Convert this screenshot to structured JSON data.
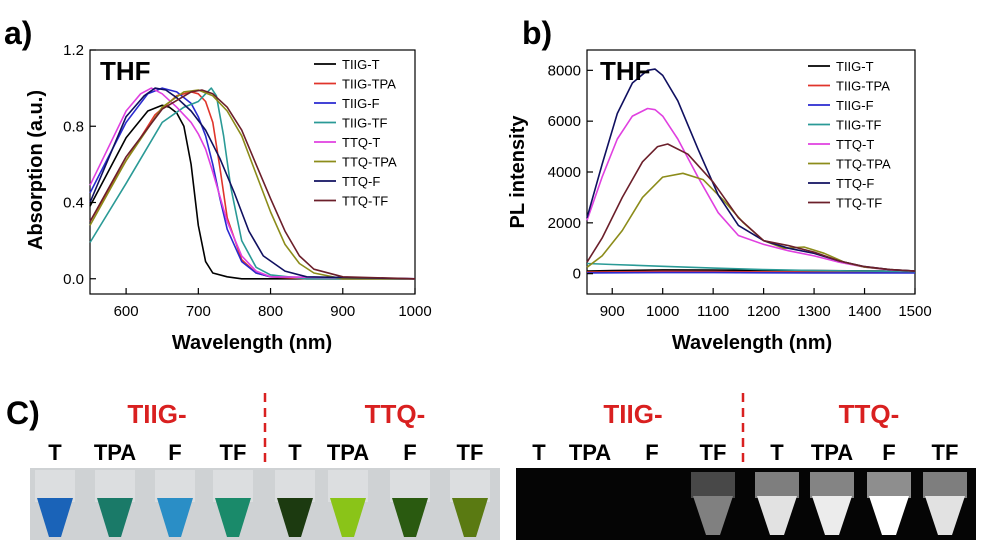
{
  "panels": {
    "a": {
      "label": "a)"
    },
    "b": {
      "label": "b)"
    },
    "c": {
      "label": "C)"
    }
  },
  "chart_data": [
    {
      "type": "line",
      "id": "a",
      "xlabel": "Wavelength (nm)",
      "ylabel": "Absorption (a.u.)",
      "annotation": "THF",
      "xlim": [
        550,
        1000
      ],
      "ylim": [
        -0.08,
        1.2
      ],
      "xticks": [
        600,
        700,
        800,
        900,
        1000
      ],
      "yticks": [
        0.0,
        0.4,
        0.8,
        1.2
      ],
      "ytick_labels": [
        "0.0",
        "0.4",
        "0.8",
        "1.2"
      ],
      "grid": false,
      "legend_position": "top-right",
      "series": [
        {
          "name": "TIIG-T",
          "color": "#000000",
          "x": [
            550,
            600,
            630,
            650,
            660,
            670,
            680,
            690,
            700,
            710,
            720,
            740,
            760,
            800,
            1000
          ],
          "y": [
            0.38,
            0.74,
            0.88,
            0.91,
            0.9,
            0.87,
            0.8,
            0.6,
            0.28,
            0.09,
            0.03,
            0.01,
            0.0,
            0.0,
            0.0
          ]
        },
        {
          "name": "TIIG-TPA",
          "color": "#e0352b",
          "x": [
            550,
            600,
            640,
            670,
            690,
            700,
            710,
            720,
            730,
            740,
            760,
            780,
            800,
            850,
            1000
          ],
          "y": [
            0.3,
            0.62,
            0.86,
            0.96,
            0.98,
            0.97,
            0.93,
            0.82,
            0.58,
            0.32,
            0.1,
            0.03,
            0.01,
            0.0,
            0.0
          ]
        },
        {
          "name": "TIIG-F",
          "color": "#2a2ad0",
          "x": [
            550,
            600,
            630,
            650,
            670,
            690,
            700,
            710,
            720,
            730,
            740,
            760,
            780,
            800,
            1000
          ],
          "y": [
            0.45,
            0.82,
            0.97,
            1.0,
            0.98,
            0.92,
            0.85,
            0.75,
            0.6,
            0.42,
            0.26,
            0.09,
            0.03,
            0.01,
            0.0
          ]
        },
        {
          "name": "TIIG-TF",
          "color": "#2a9a96",
          "x": [
            550,
            600,
            650,
            680,
            700,
            710,
            718,
            725,
            735,
            745,
            760,
            780,
            800,
            850,
            1000
          ],
          "y": [
            0.19,
            0.5,
            0.82,
            0.9,
            0.93,
            0.97,
            1.0,
            0.96,
            0.75,
            0.48,
            0.2,
            0.06,
            0.02,
            0.0,
            0.0
          ]
        },
        {
          "name": "TTQ-T",
          "color": "#e040e0",
          "x": [
            550,
            600,
            620,
            635,
            650,
            670,
            690,
            700,
            710,
            720,
            740,
            760,
            780,
            800,
            1000
          ],
          "y": [
            0.49,
            0.88,
            0.97,
            1.0,
            0.97,
            0.9,
            0.82,
            0.76,
            0.68,
            0.56,
            0.3,
            0.12,
            0.04,
            0.01,
            0.0
          ]
        },
        {
          "name": "TTQ-TPA",
          "color": "#8c8c1a",
          "x": [
            550,
            600,
            650,
            680,
            700,
            720,
            740,
            760,
            780,
            800,
            820,
            840,
            860,
            900,
            1000
          ],
          "y": [
            0.28,
            0.62,
            0.9,
            0.98,
            0.99,
            0.96,
            0.88,
            0.75,
            0.55,
            0.35,
            0.18,
            0.08,
            0.03,
            0.0,
            0.0
          ]
        },
        {
          "name": "TTQ-F",
          "color": "#101060",
          "x": [
            550,
            600,
            625,
            640,
            655,
            670,
            690,
            710,
            730,
            750,
            770,
            790,
            820,
            850,
            1000
          ],
          "y": [
            0.4,
            0.85,
            0.96,
            1.0,
            0.99,
            0.95,
            0.88,
            0.78,
            0.63,
            0.45,
            0.25,
            0.12,
            0.04,
            0.01,
            0.0
          ]
        },
        {
          "name": "TTQ-TF",
          "color": "#6b1f2a",
          "x": [
            550,
            600,
            650,
            690,
            705,
            720,
            740,
            760,
            780,
            800,
            820,
            840,
            860,
            900,
            1000
          ],
          "y": [
            0.3,
            0.64,
            0.89,
            0.98,
            0.99,
            0.97,
            0.9,
            0.78,
            0.6,
            0.42,
            0.25,
            0.12,
            0.05,
            0.01,
            0.0
          ]
        }
      ]
    },
    {
      "type": "line",
      "id": "b",
      "xlabel": "Wavelength (nm)",
      "ylabel": "PL intensity",
      "annotation": "THF",
      "xlim": [
        850,
        1500
      ],
      "ylim": [
        -800,
        8800
      ],
      "xticks": [
        900,
        1000,
        1100,
        1200,
        1300,
        1400,
        1500
      ],
      "yticks": [
        0,
        2000,
        4000,
        6000,
        8000
      ],
      "ytick_labels": [
        "0",
        "2000",
        "4000",
        "6000",
        "8000"
      ],
      "grid": false,
      "legend_position": "top-right",
      "series": [
        {
          "name": "TIIG-T",
          "color": "#000000",
          "x": [
            850,
            900,
            1000,
            1100,
            1200,
            1300,
            1400,
            1500
          ],
          "y": [
            100,
            120,
            150,
            140,
            130,
            120,
            110,
            100
          ]
        },
        {
          "name": "TIIG-TPA",
          "color": "#e0352b",
          "x": [
            850,
            900,
            1000,
            1100,
            1200,
            1300,
            1400,
            1500
          ],
          "y": [
            60,
            70,
            90,
            80,
            70,
            60,
            60,
            50
          ]
        },
        {
          "name": "TIIG-F",
          "color": "#2a2ad0",
          "x": [
            850,
            900,
            1000,
            1100,
            1200,
            1300,
            1400,
            1500
          ],
          "y": [
            30,
            35,
            40,
            40,
            35,
            30,
            30,
            30
          ]
        },
        {
          "name": "TIIG-TF",
          "color": "#2a9a96",
          "x": [
            850,
            900,
            1000,
            1100,
            1200,
            1300,
            1400,
            1500
          ],
          "y": [
            400,
            360,
            290,
            220,
            160,
            120,
            100,
            80
          ]
        },
        {
          "name": "TTQ-T",
          "color": "#e040e0",
          "x": [
            850,
            880,
            910,
            940,
            970,
            985,
            1000,
            1030,
            1070,
            1110,
            1150,
            1200,
            1250,
            1300,
            1350,
            1400,
            1450,
            1500
          ],
          "y": [
            2100,
            3800,
            5300,
            6200,
            6500,
            6450,
            6200,
            5300,
            3800,
            2400,
            1500,
            1150,
            900,
            700,
            450,
            260,
            150,
            100
          ]
        },
        {
          "name": "TTQ-TPA",
          "color": "#8c8c1a",
          "x": [
            850,
            880,
            920,
            960,
            1000,
            1040,
            1080,
            1120,
            1160,
            1200,
            1240,
            1280,
            1320,
            1360,
            1400,
            1450,
            1500
          ],
          "y": [
            250,
            700,
            1700,
            3000,
            3800,
            3950,
            3700,
            2900,
            2000,
            1300,
            1000,
            1050,
            800,
            450,
            260,
            160,
            100
          ]
        },
        {
          "name": "TTQ-F",
          "color": "#101060",
          "x": [
            850,
            880,
            910,
            940,
            970,
            985,
            1000,
            1030,
            1070,
            1110,
            1150,
            1200,
            1250,
            1300,
            1350,
            1400,
            1450,
            1500
          ],
          "y": [
            2200,
            4300,
            6300,
            7500,
            8000,
            8050,
            7800,
            6800,
            4900,
            3100,
            1900,
            1300,
            1000,
            800,
            500,
            280,
            160,
            100
          ]
        },
        {
          "name": "TTQ-TF",
          "color": "#6b1f2a",
          "x": [
            850,
            880,
            920,
            960,
            990,
            1010,
            1050,
            1100,
            1150,
            1200,
            1250,
            1300,
            1350,
            1400,
            1450,
            1500
          ],
          "y": [
            450,
            1400,
            3000,
            4400,
            5000,
            5100,
            4700,
            3600,
            2200,
            1300,
            1100,
            850,
            500,
            280,
            160,
            100
          ]
        }
      ]
    }
  ],
  "photos": {
    "left": {
      "group1_title": "TIIG-",
      "group2_title": "TTQ-",
      "labels": [
        "T",
        "TPA",
        "F",
        "TF",
        "T",
        "TPA",
        "F",
        "TF"
      ],
      "vial_colors": [
        "#1a63b8",
        "#1a7a68",
        "#2a8ec6",
        "#1a8a6a",
        "#1c3a10",
        "#8ac418",
        "#2a5a10",
        "#5a7a12"
      ]
    },
    "right": {
      "group1_title": "TIIG-",
      "group2_title": "TTQ-",
      "labels": [
        "T",
        "TPA",
        "F",
        "TF",
        "T",
        "TPA",
        "F",
        "TF"
      ],
      "vial_brightness": [
        0.0,
        0.0,
        0.0,
        0.35,
        0.85,
        0.9,
        1.0,
        0.85
      ]
    },
    "title_color": "#d92020",
    "divider_color": "#d92020"
  }
}
